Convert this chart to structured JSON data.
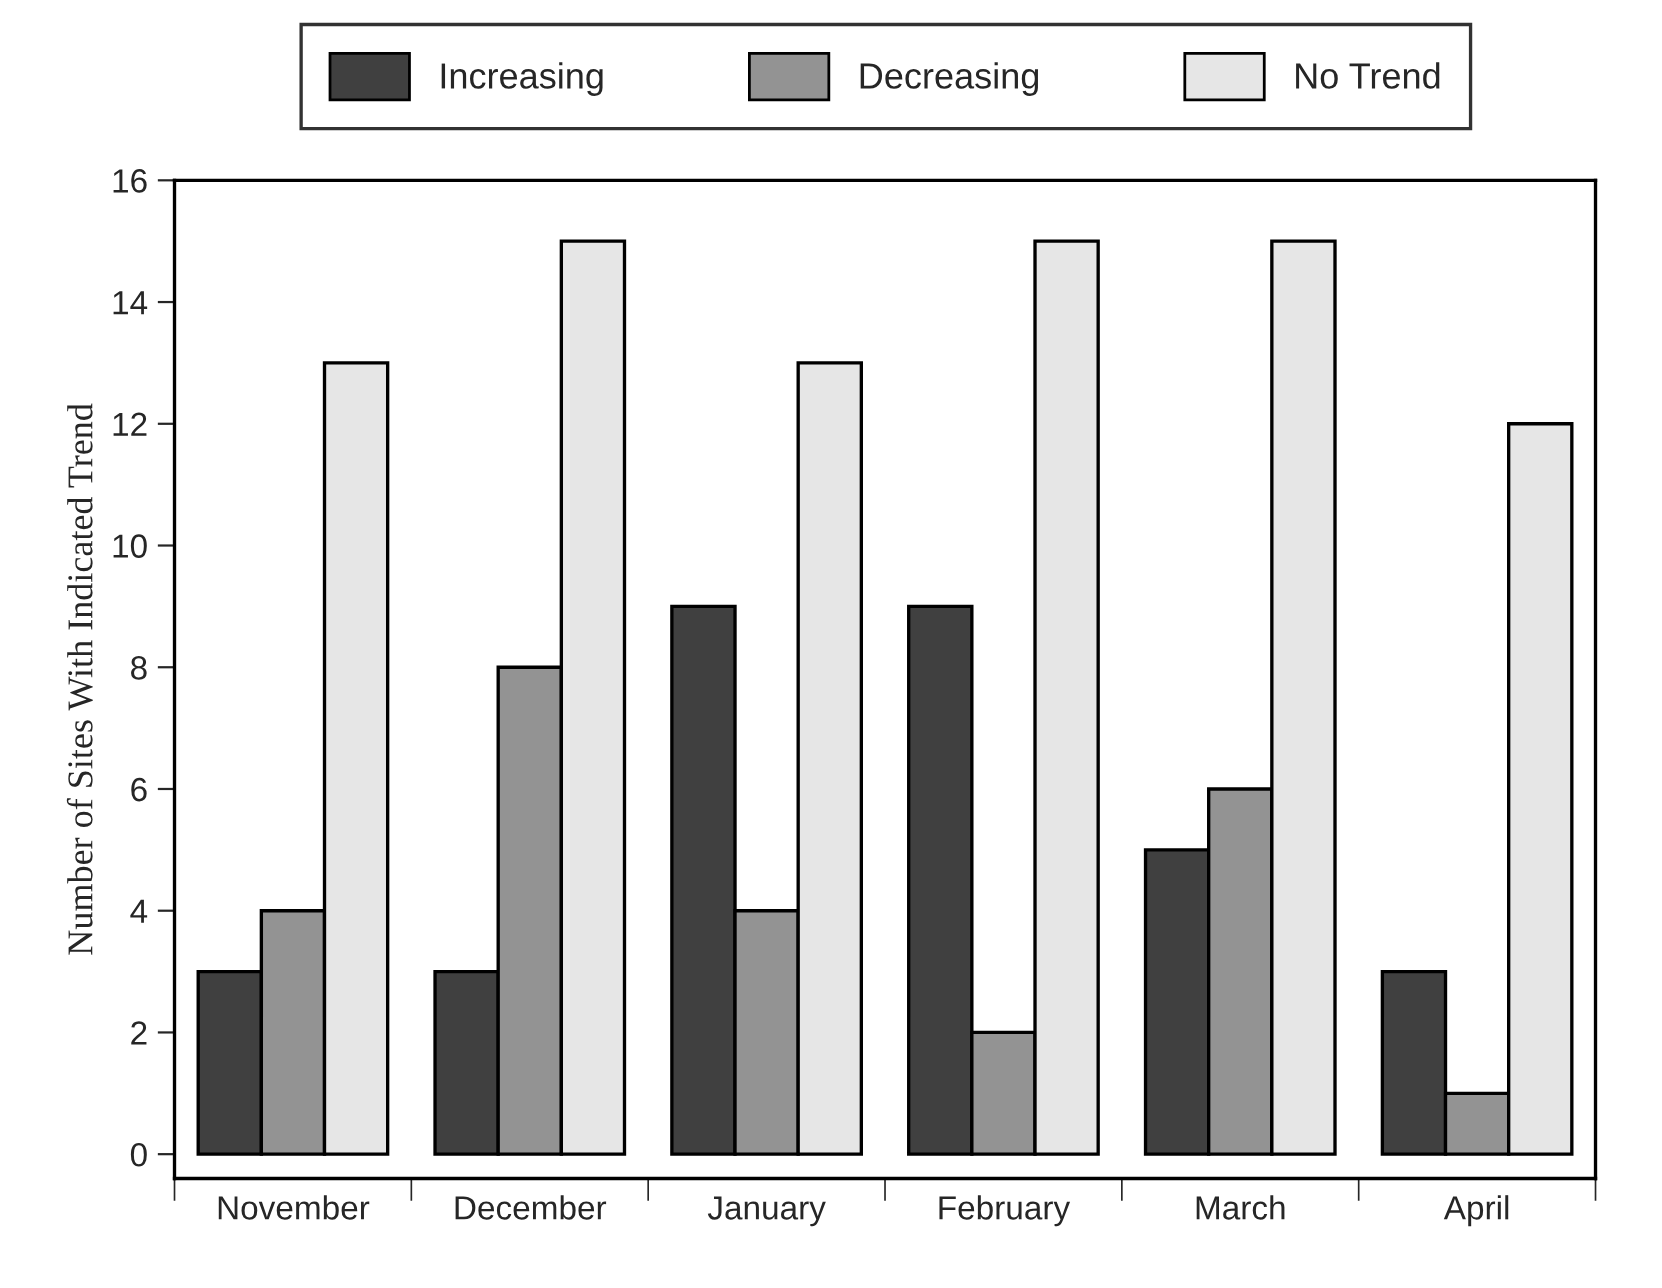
{
  "chart_data": {
    "type": "bar",
    "ylabel": "Number of Sites With Indicated Trend",
    "categories": [
      "November",
      "December",
      "January",
      "February",
      "March",
      "April"
    ],
    "series": [
      {
        "name": "Increasing",
        "color": "#404040",
        "values": [
          3,
          3,
          9,
          9,
          5,
          3
        ]
      },
      {
        "name": "Decreasing",
        "color": "#939393",
        "values": [
          4,
          8,
          4,
          2,
          6,
          1
        ]
      },
      {
        "name": "No Trend",
        "color": "#e6e6e6",
        "values": [
          13,
          15,
          13,
          15,
          15,
          12
        ]
      }
    ],
    "ylim": [
      -0.4,
      16
    ],
    "yticks": [
      0,
      2,
      4,
      6,
      8,
      10,
      12,
      14,
      16
    ],
    "grid": false,
    "legend": "top"
  }
}
